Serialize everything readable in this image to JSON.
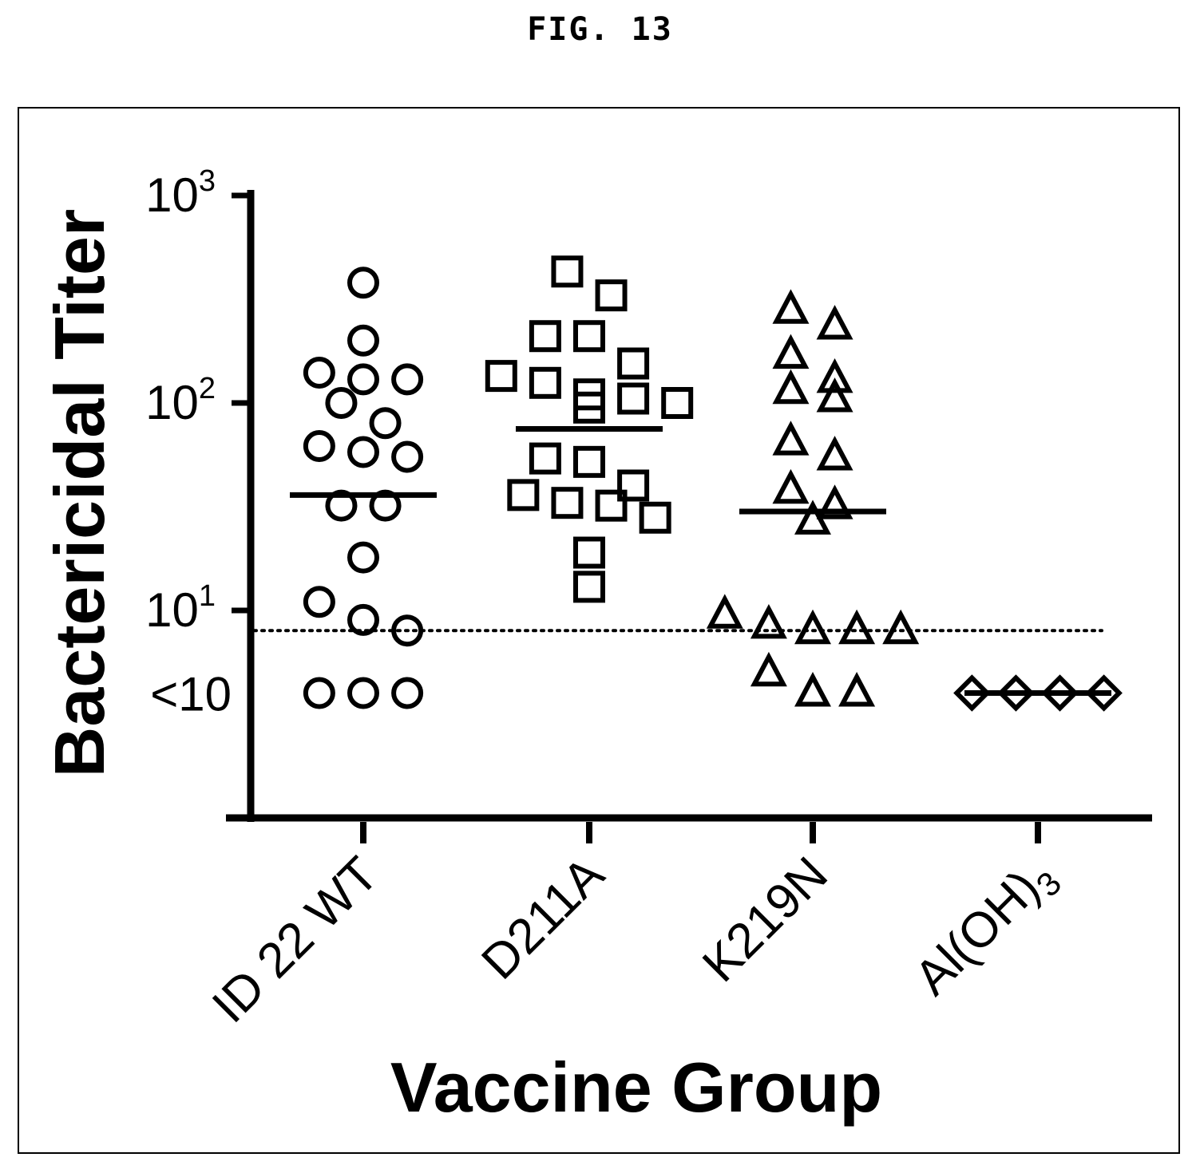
{
  "figure_label": "FIG. 13",
  "chart_data": {
    "type": "scatter",
    "title": "",
    "xlabel": "Vaccine Group",
    "ylabel": "Bactericidal Titer",
    "y_scale": "log",
    "ylim": [
      1,
      1000
    ],
    "y_ticks": [
      {
        "value": 1000,
        "base": "10",
        "exp": "3"
      },
      {
        "value": 100,
        "base": "10",
        "exp": "2"
      },
      {
        "value": 10,
        "base": "10",
        "exp": "1"
      },
      {
        "value": 4,
        "text": "<10"
      }
    ],
    "detection_limit": 8,
    "grid": false,
    "legend": "none",
    "categories": [
      {
        "name_parts": [
          "ID 22 WT"
        ],
        "subscript": ""
      },
      {
        "name_parts": [
          "D211A"
        ],
        "subscript": ""
      },
      {
        "name_parts": [
          "K219N"
        ],
        "subscript": ""
      },
      {
        "name_parts": [
          "Al(OH)"
        ],
        "subscript": "3"
      }
    ],
    "series": [
      {
        "category": "ID 22 WT",
        "marker": "circle",
        "median": 36,
        "values": [
          380,
          200,
          140,
          130,
          100,
          130,
          80,
          62,
          55,
          58,
          32,
          32,
          18,
          11,
          9,
          8,
          4,
          4,
          4
        ]
      },
      {
        "category": "D211A",
        "marker": "square",
        "median": 75,
        "values": [
          430,
          330,
          210,
          210,
          155,
          135,
          125,
          95,
          100,
          105,
          110,
          52,
          54,
          40,
          36,
          32,
          33,
          28,
          19,
          13
        ]
      },
      {
        "category": "K219N",
        "marker": "triangle",
        "median": 30,
        "values": [
          280,
          235,
          170,
          130,
          115,
          105,
          65,
          55,
          38,
          32,
          27,
          9.5,
          8.5,
          8,
          8,
          8,
          5,
          4,
          4
        ]
      },
      {
        "category": "Al(OH)3",
        "marker": "diamond",
        "median": 4,
        "values": [
          4,
          4,
          4,
          4
        ]
      }
    ]
  }
}
